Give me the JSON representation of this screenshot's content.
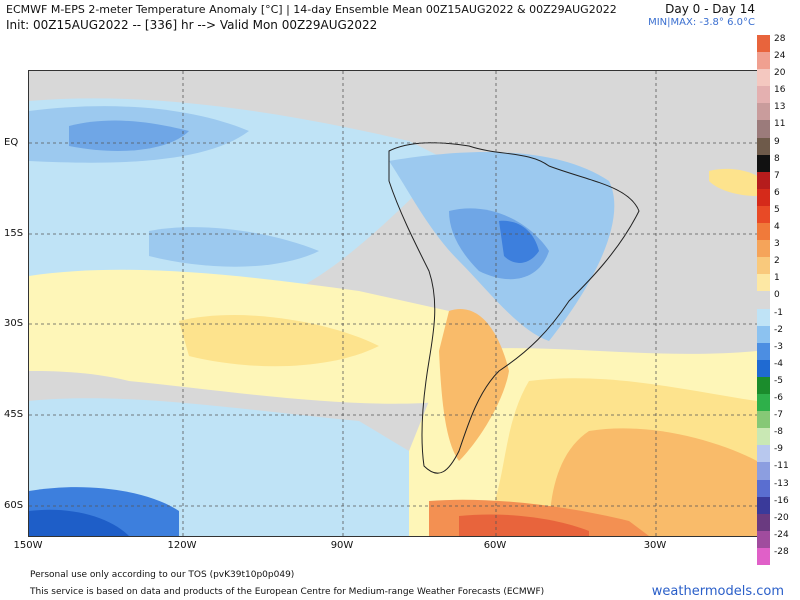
{
  "header": {
    "title": "ECMWF M-EPS 2-meter Temperature Anomaly [°C] | 14-day Ensemble Mean 00Z15AUG2022 & 00Z29AUG2022",
    "init_line": "Init: 00Z15AUG2022 -- [336] hr --> Valid Mon 00Z29AUG2022",
    "range": "Day 0 - Day 14",
    "minmax_label": "MIN|MAX:",
    "min_value": "-3.8°",
    "max_value": "6.0°C"
  },
  "map": {
    "lat_labels": [
      "EQ",
      "15S",
      "30S",
      "45S",
      "60S"
    ],
    "lon_labels": [
      "150W",
      "120W",
      "90W",
      "60W",
      "30W"
    ],
    "colors": {
      "neutral": "#d8d8d8",
      "cool1": "#bfe3f6",
      "cool2": "#9cc9ef",
      "cool3": "#6fa6e6",
      "cool4": "#3d7fdd",
      "cool5": "#1e5ec8",
      "warm1": "#fef6b8",
      "warm2": "#fde38d",
      "warm3": "#f9bb6a",
      "warm4": "#f39052",
      "warm5": "#e8643c",
      "land_outline": "#222222",
      "grid": "#555555"
    }
  },
  "legend": {
    "labels": [
      "28",
      "24",
      "20",
      "16",
      "13",
      "11",
      "9",
      "8",
      "7",
      "6",
      "5",
      "4",
      "3",
      "2",
      "1",
      "0",
      "-1",
      "-2",
      "-3",
      "-4",
      "-5",
      "-6",
      "-7",
      "-8",
      "-9",
      "-11",
      "-13",
      "-16",
      "-20",
      "-24",
      "-28"
    ],
    "colors": [
      "#e8643c",
      "#f0a090",
      "#f4c8c0",
      "#e4b0b0",
      "#c99c9c",
      "#9b7b7b",
      "#6e5a4a",
      "#111111",
      "#b51c1c",
      "#d52a1a",
      "#e84a26",
      "#f07a3a",
      "#f5a45a",
      "#f9c97c",
      "#fde8a4",
      "#d8d8d8",
      "#bfe3f6",
      "#8cc2f0",
      "#4c8ee2",
      "#1f6ad2",
      "#1b8c2c",
      "#2eb04a",
      "#86c876",
      "#c9e8b4",
      "#b8c8ee",
      "#8c9ee0",
      "#5a6ed0",
      "#3a3a9a",
      "#6a3a80",
      "#a04c9e",
      "#e060c8"
    ]
  },
  "footer": {
    "tos": "Personal use only according to our TOS (pvK39t10p0p049)",
    "credit": "This service is based on data and products of the European Centre for Medium-range Weather Forecasts (ECMWF)",
    "brand": "weathermodels.com"
  }
}
